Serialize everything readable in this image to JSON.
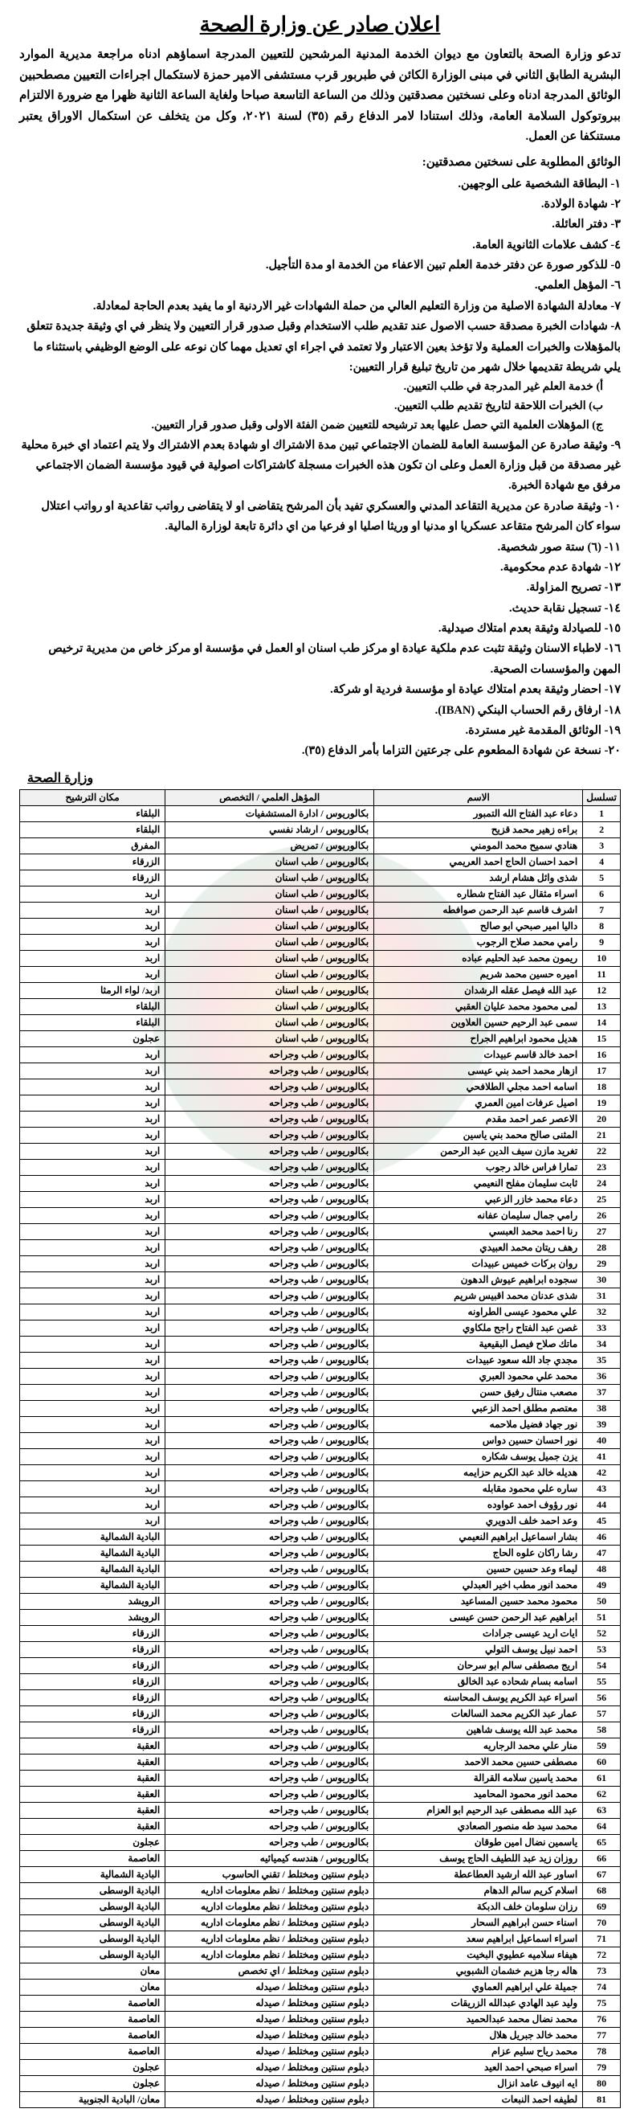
{
  "title": "اعلان صادر عن وزارة الصحة",
  "intro": "تدعو وزارة الصحة بالتعاون مع ديوان الخدمة المدنية المرشحين للتعيين المدرجة اسماؤهم ادناه مراجعة مديرية الموارد البشرية الطابق الثاني في مبنى الوزارة الكائن في طبربور قرب مستشفى الامير حمزة لاستكمال اجراءات التعيين مصطحبين الوثائق المدرجة ادناه وعلى نسختين مصدقتين وذلك من الساعة التاسعة صباحا ولغاية الساعة الثانية ظهرا مع ضرورة الالتزام ببروتوكول السلامة العامة، وذلك استنادا لامر الدفاع رقم (٣٥) لسنة ٢٠٢١، وكل من يتخلف عن استكمال الاوراق يعتبر مستنكفا عن العمل.",
  "docs_heading": "الوثائق المطلوبة على نسختين مصدقتين:",
  "docs": [
    "١- البطاقة الشخصية على الوجهين.",
    "٢- شهادة الولادة.",
    "٣- دفتر العائلة.",
    "٤- كشف علامات الثانوية العامة.",
    "٥- للذكور صورة عن دفتر خدمة العلم تبين الاعفاء من الخدمة او مدة التأجيل.",
    "٦- المؤهل العلمي.",
    "٧- معادلة الشهادة الاصلية من وزارة التعليم العالي من حملة الشهادات غير الاردنية او ما يفيد بعدم الحاجة لمعادلة.",
    "٨- شهادات الخبرة مصدقة حسب الاصول عند تقديم طلب الاستخدام وقبل صدور قرار التعيين ولا ينظر في اي وثيقة جديدة تتعلق بالمؤهلات والخبرات العملية ولا تؤخذ بعين الاعتبار ولا تعتمد في اجراء اي تعديل مهما كان نوعه على الوضع الوظيفي باستثناء ما يلي شريطة تقديمها خلال شهر من تاريخ تبليغ قرار التعيين:"
  ],
  "sub8": [
    "أ) خدمة العلم غير المدرجة في طلب التعيين.",
    "ب) الخبرات اللاحقة لتاريخ تقديم طلب التعيين.",
    "ج) المؤهلات العلمية التي حصل عليها بعد ترشيحه للتعيين ضمن الفئة الاولى وقبل صدور قرار التعيين."
  ],
  "docs2": [
    "٩- وثيقة صادرة عن المؤسسة العامة للضمان الاجتماعي تبين مدة الاشتراك او شهادة بعدم الاشتراك ولا يتم اعتماد اي خبرة محلية غير مصدقة من قبل وزارة العمل وعلى ان تكون هذه الخبرات مسجلة كاشتراكات اصولية في قيود مؤسسة الضمان الاجتماعي مرفق مع شهادة الخبرة.",
    "١٠- وثيقة صادرة عن مديرية التقاعد المدني والعسكري تفيد بأن المرشح يتقاضى او لا يتقاضى رواتب تقاعدية او رواتب اعتلال سواء كان المرشح متقاعد عسكريا او مدنيا او وريثا اصليا او فرعيا من اي دائرة تابعة لوزارة المالية.",
    "١١- (٦) ستة صور شخصية.",
    "١٢- شهادة عدم محكومية.",
    "١٣- تصريح المزاولة.",
    "١٤- تسجيل نقابة حديث.",
    "١٥- للصيادلة وثيقة بعدم امتلاك صيدلية.",
    "١٦- لاطباء الاسنان وثيقة تثبت عدم ملكية عيادة او مركز طب اسنان او العمل في مؤسسة او مركز خاص من مديرية ترخيص المهن والمؤسسات الصحية.",
    "١٧- احضار وثيقة بعدم امتلاك عيادة او مؤسسة فردية او شركة.",
    "١٨- ارفاق رقم الحساب البنكي (IBAN).",
    "١٩- الوثائق المقدمة غير مستردة.",
    "٢٠- نسخة عن شهادة المطعوم على جرعتين التزاما بأمر الدفاع (٣٥)."
  ],
  "ministry_label": "وزارة الصحة",
  "headers": {
    "no": "تسلسل",
    "name": "الاسم",
    "qual": "المؤهل العلمي / التخصص",
    "loc": "مكان الترشيح"
  },
  "rows": [
    {
      "n": 1,
      "name": "دعاء عبد الفتاح الله التمبور",
      "qual": "بكالوريوس / ادارة المستشفيات",
      "loc": "البلقاء"
    },
    {
      "n": 2,
      "name": "براءه زهير محمد قزيح",
      "qual": "بكالوريوس / ارشاد نفسي",
      "loc": "البلقاء"
    },
    {
      "n": 3,
      "name": "هنادي سميح محمد المومني",
      "qual": "بكالوريوس / تمريض",
      "loc": "المفرق"
    },
    {
      "n": 4,
      "name": "احمد احسان الحاج احمد العريمي",
      "qual": "بكالوريوس / طب اسنان",
      "loc": "الزرقاء"
    },
    {
      "n": 5,
      "name": "شذى وائل هشام ارشد",
      "qual": "بكالوريوس / طب اسنان",
      "loc": "الزرقاء"
    },
    {
      "n": 6,
      "name": "اسراء مثقال عبد الفتاح شطاره",
      "qual": "بكالوريوس / طب اسنان",
      "loc": "اربد"
    },
    {
      "n": 7,
      "name": "اشرف قاسم عبد الرحمن صوافطه",
      "qual": "بكالوريوس / طب اسنان",
      "loc": "اربد"
    },
    {
      "n": 8,
      "name": "داليا امير صبحي ابو صالح",
      "qual": "بكالوريوس / طب اسنان",
      "loc": "اربد"
    },
    {
      "n": 9,
      "name": "رامي محمد صلاح الرجوب",
      "qual": "بكالوريوس / طب اسنان",
      "loc": "اربد"
    },
    {
      "n": 10,
      "name": "ريمون محمد عبد الحليم عباده",
      "qual": "بكالوريوس / طب اسنان",
      "loc": "اربد"
    },
    {
      "n": 11,
      "name": "اميره حسين محمد شريم",
      "qual": "بكالوريوس / طب اسنان",
      "loc": "اربد"
    },
    {
      "n": 12,
      "name": "عبد الله فيصل عقله الرشدان",
      "qual": "بكالوريوس / طب اسنان",
      "loc": "اربد/ لواء الرمثا"
    },
    {
      "n": 13,
      "name": "لمى محمود محمد عليان العقبي",
      "qual": "بكالوريوس / طب اسنان",
      "loc": "البلقاء"
    },
    {
      "n": 14,
      "name": "سمى عبد الرحيم حسين العلاوين",
      "qual": "بكالوريوس / طب اسنان",
      "loc": "البلقاء"
    },
    {
      "n": 15,
      "name": "هديل محمود ابراهيم الجراح",
      "qual": "بكالوريوس / طب اسنان",
      "loc": "عجلون"
    },
    {
      "n": 16,
      "name": "احمد خالد قاسم عبيدات",
      "qual": "بكالوريوس / طب وجراحه",
      "loc": "اربد"
    },
    {
      "n": 17,
      "name": "ازهار محمد احمد بني عيسى",
      "qual": "بكالوريوس / طب وجراحه",
      "loc": "اربد"
    },
    {
      "n": 18,
      "name": "اسامه احمد مجلي الطلافحي",
      "qual": "بكالوريوس / طب وجراحه",
      "loc": "اربد"
    },
    {
      "n": 19,
      "name": "اصيل عرفات امين العمري",
      "qual": "بكالوريوس / طب وجراحه",
      "loc": "اربد"
    },
    {
      "n": 20,
      "name": "الاعصر عمر احمد مقدم",
      "qual": "بكالوريوس / طب وجراحه",
      "loc": "اربد"
    },
    {
      "n": 21,
      "name": "المثنى صالح محمد بني ياسين",
      "qual": "بكالوريوس / طب وجراحه",
      "loc": "اربد"
    },
    {
      "n": 22,
      "name": "تغريد مازن سيف الدين عبد الرحمن",
      "qual": "بكالوريوس / طب وجراحه",
      "loc": "اربد"
    },
    {
      "n": 23,
      "name": "تمارا فراس خالد رجوب",
      "qual": "بكالوريوس / طب وجراحه",
      "loc": "اربد"
    },
    {
      "n": 24,
      "name": "ثابت سليمان مفلح النعيمي",
      "qual": "بكالوريوس / طب وجراحه",
      "loc": "اربد"
    },
    {
      "n": 25,
      "name": "دعاء محمد خازر الزعبي",
      "qual": "بكالوريوس / طب وجراحه",
      "loc": "اربد"
    },
    {
      "n": 26,
      "name": "رامي جمال سليمان عفانه",
      "qual": "بكالوريوس / طب وجراحه",
      "loc": "اربد"
    },
    {
      "n": 27,
      "name": "رنا احمد محمد العبسي",
      "qual": "بكالوريوس / طب وجراحه",
      "loc": "اربد"
    },
    {
      "n": 28,
      "name": "رهف ريتان محمد العبيدي",
      "qual": "بكالوريوس / طب وجراحه",
      "loc": "اربد"
    },
    {
      "n": 29,
      "name": "روان بركات خميس عبيدات",
      "qual": "بكالوريوس / طب وجراحه",
      "loc": "اربد"
    },
    {
      "n": 30,
      "name": "سجوده ابراهيم عيوش الدهون",
      "qual": "بكالوريوس / طب وجراحه",
      "loc": "اربد"
    },
    {
      "n": 31,
      "name": "شذى عدنان محمد اقبيس شريم",
      "qual": "بكالوريوس / طب وجراحه",
      "loc": "اربد"
    },
    {
      "n": 32,
      "name": "علي محمود عيسى الطراونه",
      "qual": "بكالوريوس / طب وجراحه",
      "loc": "اربد"
    },
    {
      "n": 33,
      "name": "غصن عبد الفتاح راجح ملكاوي",
      "qual": "بكالوريوس / طب وجراحه",
      "loc": "اربد"
    },
    {
      "n": 34,
      "name": "ماتك صلاح فيصل البقيعية",
      "qual": "بكالوريوس / طب وجراحه",
      "loc": "اربد"
    },
    {
      "n": 35,
      "name": "مجدي جاد الله سعود عبيدات",
      "qual": "بكالوريوس / طب وجراحه",
      "loc": "اربد"
    },
    {
      "n": 36,
      "name": "محمد علي محمود العبري",
      "qual": "بكالوريوس / طب وجراحه",
      "loc": "اربد"
    },
    {
      "n": 37,
      "name": "مصعب منتال رفيق حسن",
      "qual": "بكالوريوس / طب وجراحه",
      "loc": "اربد"
    },
    {
      "n": 38,
      "name": "معتصم مطلق احمد الزعبي",
      "qual": "بكالوريوس / طب وجراحه",
      "loc": "اربد"
    },
    {
      "n": 39,
      "name": "نور جهاد فضيل ملاحمه",
      "qual": "بكالوريوس / طب وجراحه",
      "loc": "اربد"
    },
    {
      "n": 40,
      "name": "نور احسان حسين دواس",
      "qual": "بكالوريوس / طب وجراحه",
      "loc": "اربد"
    },
    {
      "n": 41,
      "name": "يزن جميل يوسف شكاره",
      "qual": "بكالوريوس / طب وجراحه",
      "loc": "اربد"
    },
    {
      "n": 42,
      "name": "هديله خالد عبد الكريم حزايمه",
      "qual": "بكالوريوس / طب وجراحه",
      "loc": "اربد"
    },
    {
      "n": 43,
      "name": "ساره علي محمود مقابله",
      "qual": "بكالوريوس / طب وجراحه",
      "loc": "اربد"
    },
    {
      "n": 44,
      "name": "نور رؤوف احمد عواوده",
      "qual": "بكالوريوس / طب وجراحه",
      "loc": "اربد"
    },
    {
      "n": 45,
      "name": "وعد احمد خلف الدويري",
      "qual": "بكالوريوس / طب وجراحه",
      "loc": "اربد"
    },
    {
      "n": 46,
      "name": "بشار اسماعيل ابراهيم النعيمي",
      "qual": "بكالوريوس / طب وجراحه",
      "loc": "البادية الشمالية"
    },
    {
      "n": 47,
      "name": "رشا راكان علوه الحاج",
      "qual": "بكالوريوس / طب وجراحه",
      "loc": "البادية الشمالية"
    },
    {
      "n": 48,
      "name": "ليماء وعد حسين حسين",
      "qual": "بكالوريوس / طب وجراحه",
      "loc": "البادية الشمالية"
    },
    {
      "n": 49,
      "name": "محمد انور مطب اخير العبدلي",
      "qual": "بكالوريوس / طب وجراحه",
      "loc": "البادية الشمالية"
    },
    {
      "n": 50,
      "name": "محمود محمد حسين المساعيد",
      "qual": "بكالوريوس / طب وجراحه",
      "loc": "الرويشد"
    },
    {
      "n": 51,
      "name": "ابراهيم عبد الرحمن حسن عيسى",
      "qual": "بكالوريوس / طب وجراحه",
      "loc": "الرويشد"
    },
    {
      "n": 52,
      "name": "ايات اريد عيسى جرادات",
      "qual": "بكالوريوس / طب وجراحه",
      "loc": "الزرقاء"
    },
    {
      "n": 53,
      "name": "احمد نبيل يوسف التولي",
      "qual": "بكالوريوس / طب وجراحه",
      "loc": "الزرقاء"
    },
    {
      "n": 54,
      "name": "اريج مصطفى سالم ابو سرحان",
      "qual": "بكالوريوس / طب وجراحه",
      "loc": "الزرقاء"
    },
    {
      "n": 55,
      "name": "اسامه بسام شحاده عبد الخالق",
      "qual": "بكالوريوس / طب وجراحه",
      "loc": "الزرقاء"
    },
    {
      "n": 56,
      "name": "اسراء عبد الكريم يوسف المحاسنه",
      "qual": "بكالوريوس / طب وجراحه",
      "loc": "الزرقاء"
    },
    {
      "n": 57,
      "name": "عمار عبد الكريم محمد السالعات",
      "qual": "بكالوريوس / طب وجراحه",
      "loc": "الزرقاء"
    },
    {
      "n": 58,
      "name": "محمد عبد الله يوسف شاهين",
      "qual": "بكالوريوس / طب وجراحه",
      "loc": "الزرقاء"
    },
    {
      "n": 59,
      "name": "منار علي محمد الرجاريه",
      "qual": "بكالوريوس / طب وجراحه",
      "loc": "العقبة"
    },
    {
      "n": 60,
      "name": "مصطفى حسين محمد الاحمد",
      "qual": "بكالوريوس / طب وجراحه",
      "loc": "العقبة"
    },
    {
      "n": 61,
      "name": "محمد ياسين سلامه القرالة",
      "qual": "بكالوريوس / طب وجراحه",
      "loc": "العقبة"
    },
    {
      "n": 62,
      "name": "محمد انور محمود المحاميد",
      "qual": "بكالوريوس / طب وجراحه",
      "loc": "العقبة"
    },
    {
      "n": 63,
      "name": "عبد الله مصطفى عبد الرحيم ابو العزام",
      "qual": "بكالوريوس / طب وجراحه",
      "loc": "العقبة"
    },
    {
      "n": 64,
      "name": "محمد سيد طه منصور الصعادي",
      "qual": "بكالوريوس / طب وجراحه",
      "loc": "العقبة"
    },
    {
      "n": 65,
      "name": "ياسمين نضال امين طوقان",
      "qual": "بكالوريوس / طب وجراحه",
      "loc": "عجلون"
    },
    {
      "n": 66,
      "name": "روزان زيد عبد اللطيف الحاج يوسف",
      "qual": "بكالوريوس / هندسه كيميائيه",
      "loc": "العاصمة"
    },
    {
      "n": 67,
      "name": "اساور عبد الله ارشيد العطاعطة",
      "qual": "دبلوم سنتين ومختلط / تقني الحاسوب",
      "loc": "البادية الشمالية"
    },
    {
      "n": 68,
      "name": "اسلام كريم سالم الدهام",
      "qual": "دبلوم سنتين ومختلط / نظم معلومات اداريه",
      "loc": "البادية الوسطى"
    },
    {
      "n": 69,
      "name": "رزان سلومان خلف الدبكة",
      "qual": "دبلوم سنتين ومختلط / نظم معلومات اداريه",
      "loc": "البادية الوسطى"
    },
    {
      "n": 70,
      "name": "اسناء حسن ابراهيم السحار",
      "qual": "دبلوم سنتين ومختلط / نظم معلومات اداريه",
      "loc": "البادية الوسطى"
    },
    {
      "n": 71,
      "name": "اسراء اسماعيل ابراهيم سعد",
      "qual": "دبلوم سنتين ومختلط / نظم معلومات اداريه",
      "loc": "البادية الوسطى"
    },
    {
      "n": 72,
      "name": "هيفاء سلاميه عطيوي البخيت",
      "qual": "دبلوم سنتين ومختلط / نظم معلومات اداريه",
      "loc": "البادية الوسطى"
    },
    {
      "n": 73,
      "name": "هاله رجا هزيم خشمان الشبوبي",
      "qual": "دبلوم سنتين ومختلط / اي تخصص",
      "loc": "معان"
    },
    {
      "n": 74,
      "name": "جميلة علي ابراهيم العماوي",
      "qual": "دبلوم سنتين ومختلط / صيدله",
      "loc": "معان"
    },
    {
      "n": 75,
      "name": "وليد عبد الهادي عبدالله الزريقات",
      "qual": "دبلوم سنتين ومختلط / صيدله",
      "loc": "العاصمة"
    },
    {
      "n": 76,
      "name": "محمد نضال محمد عبدالحميد",
      "qual": "دبلوم سنتين ومختلط / صيدله",
      "loc": "العاصمة"
    },
    {
      "n": 77,
      "name": "محمد خالد جبريل هلال",
      "qual": "دبلوم سنتين ومختلط / صيدله",
      "loc": "العاصمة"
    },
    {
      "n": 78,
      "name": "محمد رياح سليم عزام",
      "qual": "دبلوم سنتين ومختلط / صيدله",
      "loc": "العاصمة"
    },
    {
      "n": 79,
      "name": "اسراء صبحي احمد العيد",
      "qual": "دبلوم سنتين ومختلط / صيدله",
      "loc": "عجلون"
    },
    {
      "n": 80,
      "name": "ايه انيوف عامد انزال",
      "qual": "دبلوم سنتين ومختلط / صيدله",
      "loc": "عجلون"
    },
    {
      "n": 81,
      "name": "لطيفه احمد النبعات",
      "qual": "دبلوم سنتين ومختلط / صيدله",
      "loc": "معان/ البادية الجنوبية"
    }
  ]
}
